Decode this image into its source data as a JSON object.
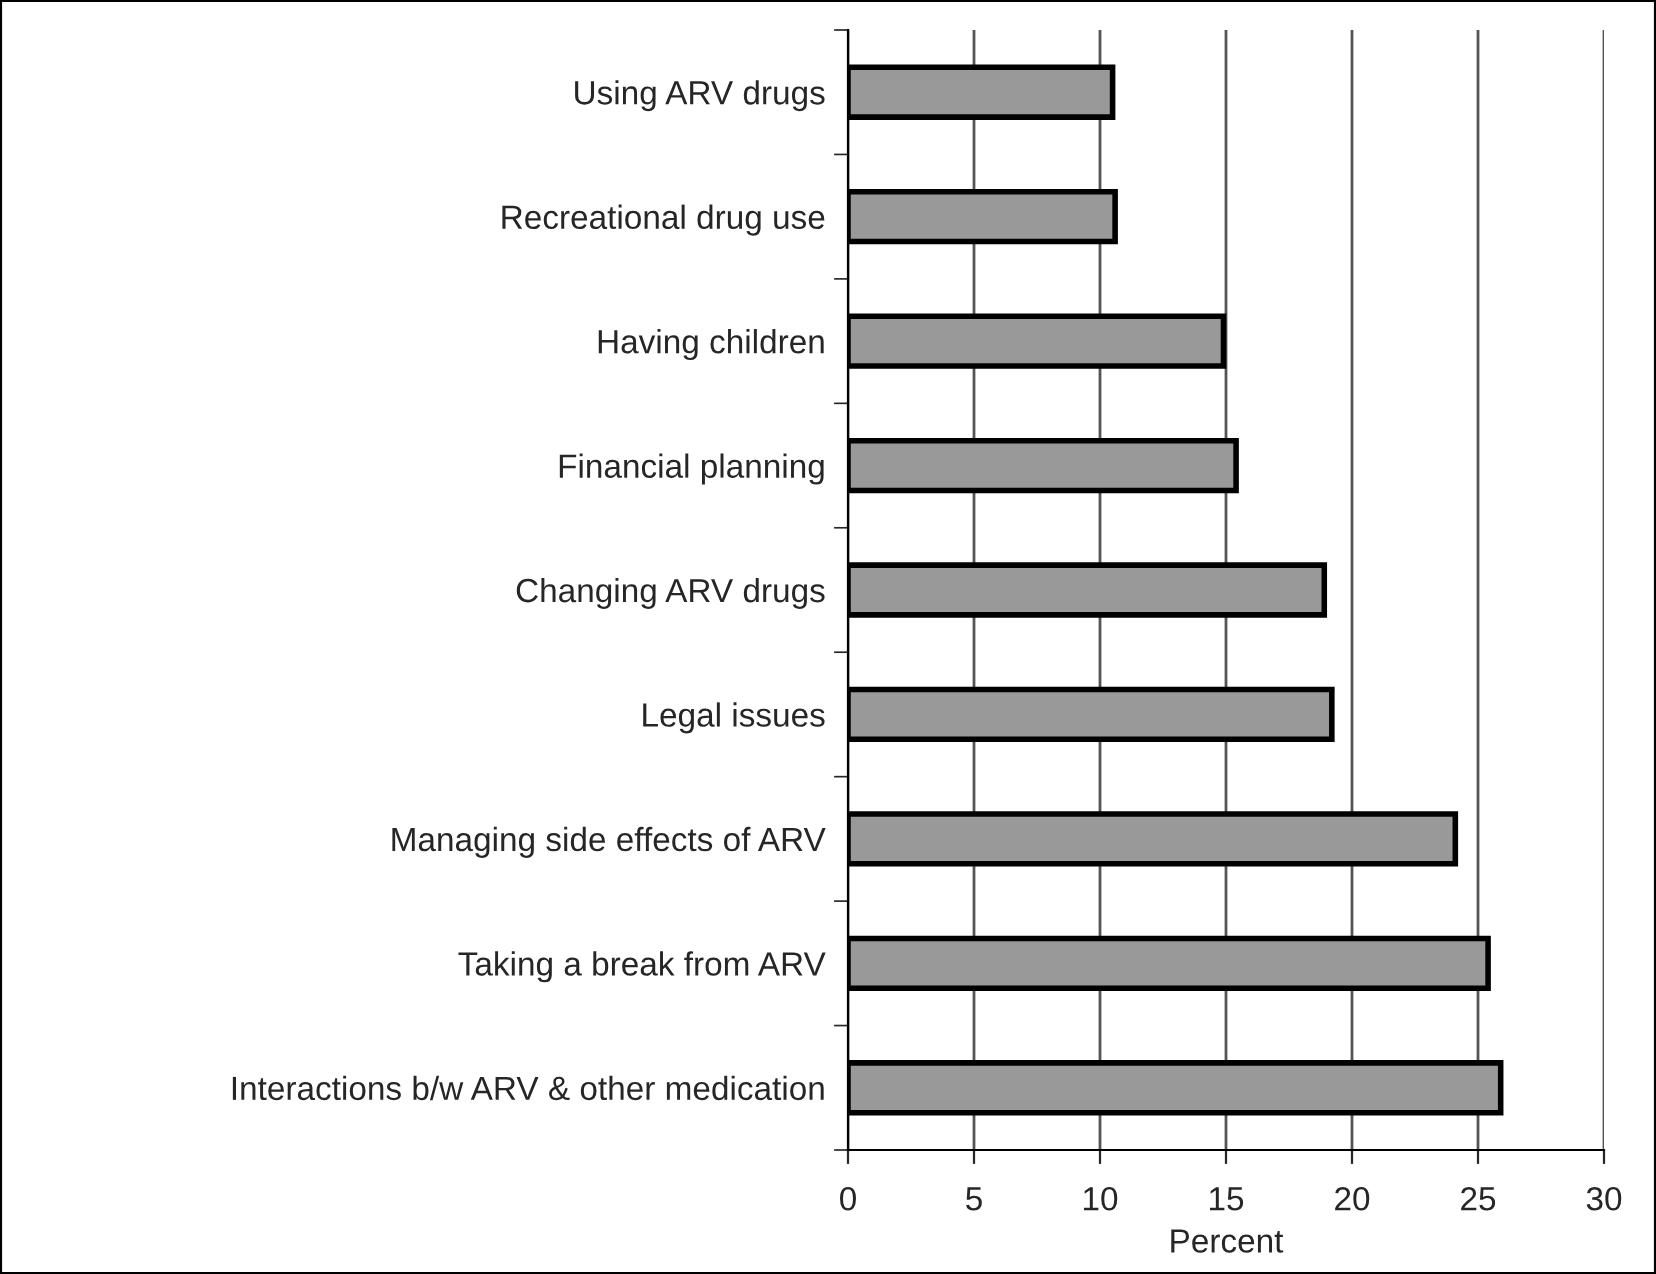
{
  "chart_data": {
    "type": "bar",
    "orientation": "horizontal",
    "xlabel": "Percent",
    "categories": [
      "Using ARV drugs",
      "Recreational drug use",
      "Having children",
      "Financial planning",
      "Changing ARV drugs",
      "Legal issues",
      "Managing side effects of ARV",
      "Taking a break from ARV",
      "Interactions b/w ARV & other medication"
    ],
    "values": [
      10.5,
      10.6,
      14.9,
      15.4,
      18.9,
      19.2,
      24.1,
      25.4,
      25.9
    ],
    "color": "#999999",
    "xlim": [
      0,
      30
    ],
    "xticks": [
      0,
      5,
      10,
      15,
      20,
      25,
      30
    ],
    "grid": "x",
    "legend": false
  }
}
